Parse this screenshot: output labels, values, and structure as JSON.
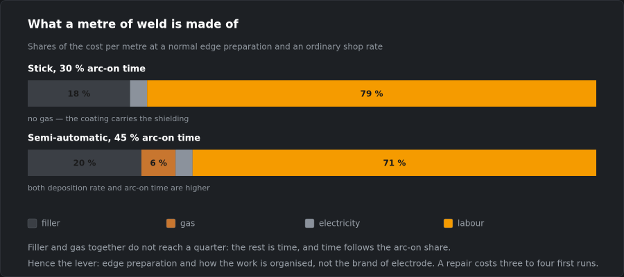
{
  "chart_data": {
    "type": "stacked-bar-horizontal",
    "title": "What a metre of weld is made of",
    "subtitle": "Shares of the cost per metre at a normal edge preparation and an ordinary shop rate",
    "categories": [
      "Stick, 30 % arc-on time",
      "Semi-automatic, 45 % arc-on time"
    ],
    "category_notes": [
      "no gas — the coating carries the shielding",
      "both deposition rate and arc-on time are higher"
    ],
    "xlim": [
      0,
      100
    ],
    "series": [
      {
        "name": "filler",
        "color": "#3b3f45",
        "values": [
          18,
          20
        ],
        "value_labels": [
          "18 %",
          "20 %"
        ]
      },
      {
        "name": "gas",
        "color": "#c8762f",
        "values": [
          0,
          6
        ],
        "value_labels": [
          null,
          "6 %"
        ]
      },
      {
        "name": "electricity",
        "color": "#8b929c",
        "values": [
          3,
          3
        ],
        "value_labels": [
          null,
          null
        ]
      },
      {
        "name": "labour",
        "color": "#f59b00",
        "values": [
          79,
          71
        ],
        "value_labels": [
          "79 %",
          "71 %"
        ]
      }
    ],
    "footnotes": [
      "Filler and gas together do not reach a quarter: the rest is time, and time follows the arc-on share.",
      "Hence the lever: edge preparation and how the work is organised, not the brand of electrode. A repair costs three to four first runs."
    ]
  }
}
